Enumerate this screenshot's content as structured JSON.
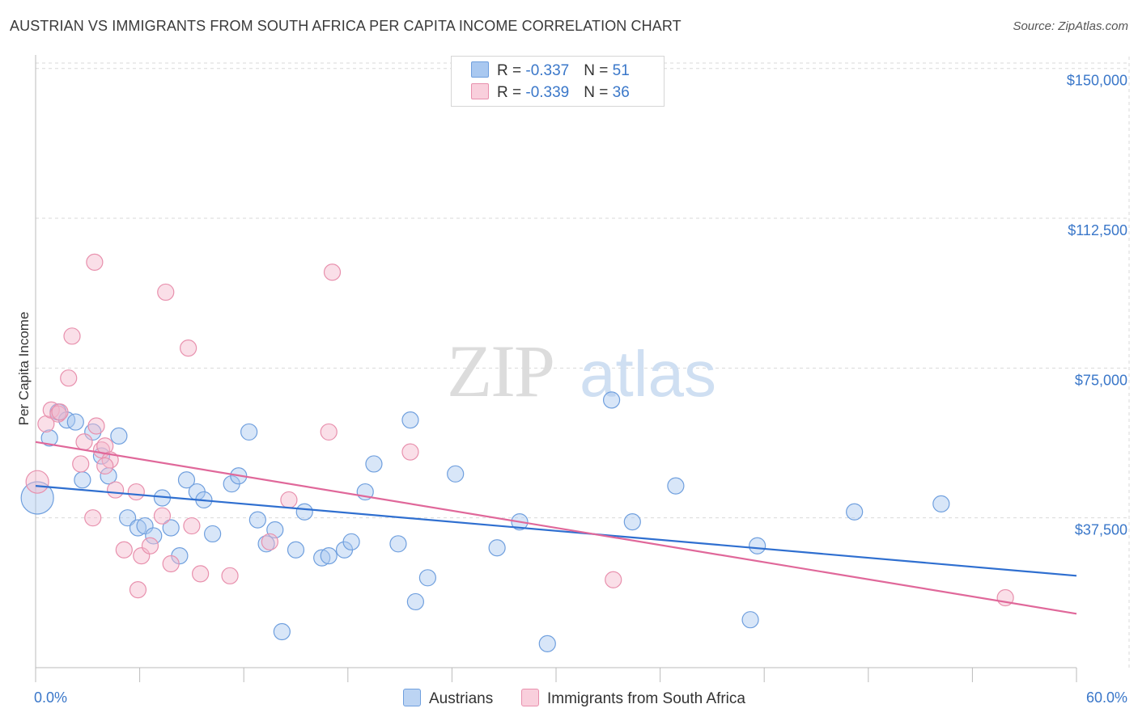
{
  "title": "AUSTRIAN VS IMMIGRANTS FROM SOUTH AFRICA PER CAPITA INCOME CORRELATION CHART",
  "source": "Source: ZipAtlas.com",
  "watermark": {
    "zip": "ZIP",
    "atlas": "atlas"
  },
  "legend": {
    "austrians": {
      "r_label": "R = ",
      "r_value": "-0.337",
      "n_label": "N = ",
      "n_value": "51"
    },
    "immigrants": {
      "r_label": "R = ",
      "r_value": "-0.339",
      "n_label": "N = ",
      "n_value": "36"
    }
  },
  "colors": {
    "austrians_fill": "#a9c8f0",
    "austrians_stroke": "#6f9fde",
    "austrians_line": "#2f6fd0",
    "immigrants_fill": "#f5b8cd",
    "immigrants_stroke": "#e890ad",
    "immigrants_line": "#e0689a",
    "tick_text": "#3a77c9",
    "grid": "#d9d9d9"
  },
  "chart_data": {
    "type": "scatter",
    "title": "AUSTRIAN VS IMMIGRANTS FROM SOUTH AFRICA PER CAPITA INCOME CORRELATION CHART",
    "xlabel": "",
    "ylabel": "Per Capita Income",
    "xlim": [
      0,
      60
    ],
    "ylim": [
      0,
      155000
    ],
    "x_tick_labels": [
      "0.0%",
      "60.0%"
    ],
    "y_ticks": [
      {
        "value": 37500,
        "label": "$37,500"
      },
      {
        "value": 75000,
        "label": "$75,000"
      },
      {
        "value": 112500,
        "label": "$112,500"
      },
      {
        "value": 150000,
        "label": "$150,000"
      }
    ],
    "grid": true,
    "legend_position": "top-center",
    "series": [
      {
        "name": "Austrians",
        "points": [
          [
            0.1,
            42500,
            20
          ],
          [
            0.8,
            57500,
            10
          ],
          [
            1.3,
            64000,
            10
          ],
          [
            1.8,
            62000,
            10
          ],
          [
            2.3,
            61500,
            10
          ],
          [
            2.7,
            47000,
            10
          ],
          [
            3.3,
            59000,
            10
          ],
          [
            3.8,
            53000,
            10
          ],
          [
            4.2,
            48000,
            10
          ],
          [
            4.8,
            58000,
            10
          ],
          [
            5.3,
            37500,
            10
          ],
          [
            5.9,
            35000,
            10
          ],
          [
            6.3,
            35500,
            10
          ],
          [
            6.8,
            33000,
            10
          ],
          [
            7.3,
            42500,
            10
          ],
          [
            7.8,
            35000,
            10
          ],
          [
            8.3,
            28000,
            10
          ],
          [
            8.7,
            47000,
            10
          ],
          [
            9.3,
            44000,
            10
          ],
          [
            9.7,
            42000,
            10
          ],
          [
            10.2,
            33500,
            10
          ],
          [
            11.3,
            46000,
            10
          ],
          [
            11.7,
            48000,
            10
          ],
          [
            12.3,
            59000,
            10
          ],
          [
            12.8,
            37000,
            10
          ],
          [
            13.3,
            31000,
            10
          ],
          [
            13.8,
            34500,
            10
          ],
          [
            14.2,
            9000,
            10
          ],
          [
            15.0,
            29500,
            10
          ],
          [
            15.5,
            39000,
            10
          ],
          [
            16.5,
            27500,
            10
          ],
          [
            16.9,
            28000,
            10
          ],
          [
            17.8,
            29500,
            10
          ],
          [
            18.2,
            31500,
            10
          ],
          [
            19.0,
            44000,
            10
          ],
          [
            19.5,
            51000,
            10
          ],
          [
            20.9,
            31000,
            10
          ],
          [
            21.6,
            62000,
            10
          ],
          [
            21.9,
            16500,
            10
          ],
          [
            22.6,
            22500,
            10
          ],
          [
            24.2,
            48500,
            10
          ],
          [
            26.6,
            30000,
            10
          ],
          [
            27.9,
            36500,
            10
          ],
          [
            29.5,
            6000,
            10
          ],
          [
            33.2,
            67000,
            10
          ],
          [
            34.4,
            36500,
            10
          ],
          [
            36.9,
            45500,
            10
          ],
          [
            41.2,
            12000,
            10
          ],
          [
            41.6,
            30500,
            10
          ],
          [
            47.2,
            39000,
            10
          ],
          [
            52.2,
            41000,
            10
          ]
        ],
        "trend": {
          "x": [
            0,
            60
          ],
          "y": [
            45500,
            23000
          ]
        }
      },
      {
        "name": "Immigrants from South Africa",
        "points": [
          [
            0.1,
            46500,
            14
          ],
          [
            0.6,
            61000,
            10
          ],
          [
            0.9,
            64500,
            10
          ],
          [
            1.3,
            63500,
            10
          ],
          [
            1.9,
            72500,
            10
          ],
          [
            2.1,
            83000,
            10
          ],
          [
            2.6,
            51000,
            10
          ],
          [
            2.8,
            56500,
            10
          ],
          [
            3.3,
            37500,
            10
          ],
          [
            3.5,
            60500,
            10
          ],
          [
            3.4,
            101500,
            10
          ],
          [
            3.8,
            54500,
            10
          ],
          [
            4.0,
            55500,
            10
          ],
          [
            4.3,
            52000,
            10
          ],
          [
            4.6,
            44500,
            10
          ],
          [
            5.1,
            29500,
            10
          ],
          [
            5.8,
            44000,
            10
          ],
          [
            5.9,
            19500,
            10
          ],
          [
            6.1,
            28000,
            10
          ],
          [
            6.6,
            30500,
            10
          ],
          [
            7.3,
            38000,
            10
          ],
          [
            7.5,
            94000,
            10
          ],
          [
            7.8,
            26000,
            10
          ],
          [
            8.8,
            80000,
            10
          ],
          [
            9.0,
            35500,
            10
          ],
          [
            9.5,
            23500,
            10
          ],
          [
            11.2,
            23000,
            10
          ],
          [
            13.5,
            31500,
            10
          ],
          [
            14.6,
            42000,
            10
          ],
          [
            16.9,
            59000,
            10
          ],
          [
            17.1,
            99000,
            10
          ],
          [
            21.6,
            54000,
            10
          ],
          [
            33.3,
            22000,
            10
          ],
          [
            55.9,
            17500,
            10
          ],
          [
            1.4,
            64000,
            10
          ],
          [
            4.0,
            50500,
            10
          ]
        ],
        "trend": {
          "x": [
            0,
            60
          ],
          "y": [
            56500,
            13500
          ]
        }
      }
    ]
  },
  "bottom_legend": {
    "austrians": "Austrians",
    "immigrants": "Immigrants from South Africa"
  }
}
